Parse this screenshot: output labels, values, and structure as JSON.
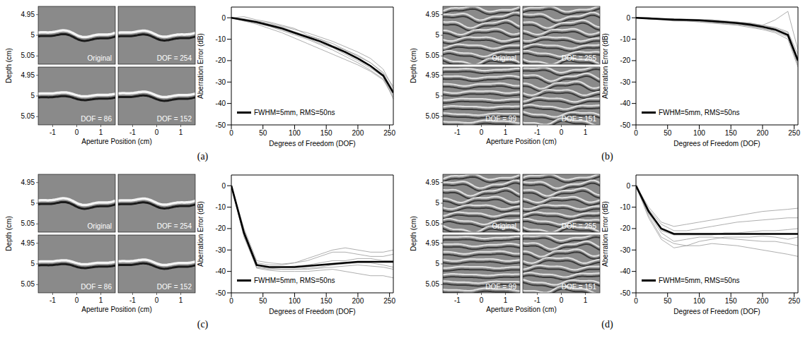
{
  "chart_data": [
    {
      "type": "line",
      "x_label": "Degrees of Freedom (DOF)",
      "y_label": "Aberration Error (dB)",
      "xlim": [
        0,
        256
      ],
      "xticks": [
        0,
        50,
        100,
        150,
        200,
        250
      ],
      "ylim": [
        -50,
        5
      ],
      "yticks": [
        0,
        -10,
        -20,
        -30,
        -40,
        -50
      ],
      "grid": false,
      "legend": "lower left",
      "x": [
        0,
        20,
        40,
        60,
        80,
        100,
        120,
        140,
        160,
        180,
        200,
        220,
        240,
        256
      ],
      "series": [
        {
          "color": "#999999",
          "line_style": "thin",
          "values": [
            0,
            -0.5,
            -1.5,
            -2.5,
            -4,
            -5.5,
            -7,
            -9,
            -11,
            -13.5,
            -16,
            -19,
            -24,
            -33
          ]
        },
        {
          "color": "#999999",
          "line_style": "thin",
          "values": [
            0,
            -1.5,
            -3,
            -5,
            -7,
            -9.5,
            -12,
            -14.5,
            -17,
            -19.5,
            -22,
            -25,
            -29,
            -37
          ]
        },
        {
          "color": "#999999",
          "line_style": "thin",
          "values": [
            0,
            0.5,
            -1,
            -2,
            -3.5,
            -5,
            -8,
            -10,
            -12,
            -15,
            -18,
            -21,
            -26,
            -34
          ]
        },
        {
          "color": "#999999",
          "line_style": "thin",
          "values": [
            0,
            -1,
            -2.5,
            -4,
            -6,
            -8,
            -10,
            -12.5,
            -15,
            -18,
            -21,
            -24.5,
            -28.5,
            -36
          ]
        },
        {
          "color": "#999999",
          "line_style": "thin",
          "values": [
            0,
            -0.5,
            -2,
            -3,
            -4.5,
            -6.5,
            -8.5,
            -10,
            -13,
            -15,
            -17.5,
            -21,
            -25.5,
            -32
          ]
        },
        {
          "color": "#999999",
          "line_style": "thin",
          "values": [
            0,
            -1.5,
            -2.5,
            -4,
            -5.5,
            -7.5,
            -9.5,
            -12,
            -14,
            -17,
            -20,
            -23.5,
            -27.5,
            -38
          ]
        },
        {
          "name": "FWHM=5mm, RMS=50ns",
          "color": "#000000",
          "line_style": "thick",
          "values": [
            0,
            -1,
            -2,
            -3.5,
            -5,
            -7,
            -9,
            -11,
            -13.5,
            -16,
            -19,
            -22.5,
            -27,
            -35
          ]
        }
      ]
    },
    {
      "type": "line",
      "x_label": "Degrees of Freedom (DOF)",
      "y_label": "Aberration Error (dB)",
      "xlim": [
        0,
        256
      ],
      "xticks": [
        0,
        50,
        100,
        150,
        200,
        250
      ],
      "ylim": [
        -50,
        5
      ],
      "yticks": [
        0,
        -10,
        -20,
        -30,
        -40,
        -50
      ],
      "grid": false,
      "legend": "lower left",
      "x": [
        0,
        20,
        40,
        60,
        80,
        100,
        120,
        140,
        160,
        180,
        200,
        220,
        240,
        256
      ],
      "series": [
        {
          "color": "#999999",
          "line_style": "thin",
          "values": [
            0,
            0,
            -0.3,
            -0.5,
            -0.6,
            -0.8,
            -1,
            -1.5,
            -2,
            -2.5,
            -3.5,
            -4.5,
            -6.5,
            -17
          ]
        },
        {
          "color": "#999999",
          "line_style": "thin",
          "values": [
            0,
            -0.5,
            -1,
            -1.5,
            -1.5,
            -2,
            -2.5,
            -3,
            -3.5,
            -4.5,
            -5.5,
            -7,
            -10,
            -23
          ]
        },
        {
          "color": "#999999",
          "line_style": "thin",
          "values": [
            0,
            -0.2,
            -0.5,
            -0.7,
            -0.8,
            -1,
            -1,
            -1.5,
            -2,
            -2.5,
            -3.5,
            -5,
            -7,
            -19
          ]
        },
        {
          "color": "#999999",
          "line_style": "thin",
          "values": [
            0,
            -0.5,
            -0.8,
            -1.2,
            -1.5,
            -1.8,
            -2.2,
            -2.8,
            -3.2,
            -4,
            -5,
            -6.5,
            -9,
            -22
          ]
        },
        {
          "color": "#999999",
          "line_style": "thin",
          "values": [
            0,
            0,
            -0.4,
            -0.6,
            -0.8,
            -1,
            -1.4,
            -1.8,
            -2.2,
            -2.8,
            -3.5,
            -1,
            3,
            -15
          ]
        },
        {
          "color": "#999999",
          "line_style": "thin",
          "values": [
            0,
            -0.3,
            -0.7,
            -1,
            -1.2,
            -1.5,
            -2,
            -2.5,
            -3,
            -3.8,
            -5,
            -6,
            -8.5,
            -21
          ]
        },
        {
          "name": "FWHM=5mm, RMS=50ns",
          "color": "#000000",
          "line_style": "thick",
          "values": [
            0,
            -0.3,
            -0.6,
            -0.9,
            -1,
            -1.2,
            -1.6,
            -2,
            -2.5,
            -3.2,
            -4.2,
            -5.5,
            -8,
            -20
          ]
        }
      ]
    },
    {
      "type": "line",
      "x_label": "Degrees of Freedom (DOF)",
      "y_label": "Aberration Error (dB)",
      "xlim": [
        0,
        256
      ],
      "xticks": [
        0,
        50,
        100,
        150,
        200,
        250
      ],
      "ylim": [
        -50,
        5
      ],
      "yticks": [
        0,
        -10,
        -20,
        -30,
        -40,
        -50
      ],
      "grid": false,
      "legend": "lower left",
      "x": [
        0,
        20,
        40,
        60,
        80,
        100,
        120,
        140,
        160,
        180,
        200,
        220,
        240,
        256
      ],
      "series": [
        {
          "color": "#999999",
          "line_style": "thin",
          "values": [
            0,
            -20,
            -35,
            -36,
            -36.5,
            -36,
            -35,
            -33,
            -31,
            -31,
            -32,
            -33,
            -33,
            -32
          ]
        },
        {
          "color": "#999999",
          "line_style": "thin",
          "values": [
            0,
            -24,
            -38,
            -39,
            -39,
            -39,
            -38.5,
            -38,
            -37,
            -36.5,
            -36,
            -36,
            -37,
            -38
          ]
        },
        {
          "color": "#999999",
          "line_style": "thin",
          "values": [
            0,
            -21,
            -36,
            -37,
            -37,
            -36,
            -34,
            -32,
            -30,
            -29,
            -30,
            -31,
            -31,
            -30
          ]
        },
        {
          "color": "#999999",
          "line_style": "thin",
          "values": [
            0,
            -23,
            -38.5,
            -39.5,
            -40,
            -40,
            -40,
            -39.5,
            -39,
            -40,
            -41,
            -42,
            -42,
            -43
          ]
        },
        {
          "color": "#999999",
          "line_style": "thin",
          "values": [
            0,
            -22,
            -37,
            -38,
            -38,
            -37.5,
            -37,
            -36,
            -35,
            -35,
            -34,
            -34,
            -35,
            -35
          ]
        },
        {
          "color": "#999999",
          "line_style": "thin",
          "values": [
            0,
            -23,
            -38,
            -38.5,
            -39,
            -39,
            -39,
            -38.5,
            -38,
            -37.5,
            -37,
            -37.5,
            -38,
            -39
          ]
        },
        {
          "name": "FWHM=5mm, RMS=50ns",
          "color": "#000000",
          "line_style": "thick",
          "values": [
            0,
            -22,
            -37,
            -38,
            -38,
            -38,
            -37.5,
            -37,
            -36.5,
            -36,
            -35.5,
            -35.5,
            -35.5,
            -35.5
          ]
        }
      ]
    },
    {
      "type": "line",
      "x_label": "Degrees of Freedom (DOF)",
      "y_label": "Aberration Error (dB)",
      "xlim": [
        0,
        256
      ],
      "xticks": [
        0,
        50,
        100,
        150,
        200,
        250
      ],
      "ylim": [
        -50,
        5
      ],
      "yticks": [
        0,
        -10,
        -20,
        -30,
        -40,
        -50
      ],
      "grid": false,
      "legend": "lower left",
      "x": [
        0,
        20,
        40,
        60,
        80,
        100,
        120,
        140,
        160,
        180,
        200,
        220,
        240,
        256
      ],
      "series": [
        {
          "color": "#999999",
          "line_style": "thin",
          "values": [
            0,
            -10,
            -17,
            -19,
            -18,
            -17,
            -16,
            -15,
            -14,
            -13,
            -12,
            -11.5,
            -11,
            -10.5
          ]
        },
        {
          "color": "#999999",
          "line_style": "thin",
          "values": [
            0,
            -14,
            -24,
            -27,
            -28,
            -28,
            -27,
            -27.5,
            -28,
            -29,
            -30,
            -31,
            -32,
            -33
          ]
        },
        {
          "color": "#999999",
          "line_style": "thin",
          "values": [
            0,
            -11,
            -18,
            -21,
            -21,
            -20,
            -19,
            -18,
            -17,
            -16.5,
            -16,
            -15.5,
            -15,
            -15
          ]
        },
        {
          "color": "#999999",
          "line_style": "thin",
          "values": [
            0,
            -13,
            -22,
            -26,
            -25,
            -24,
            -24,
            -24.5,
            -25,
            -25.5,
            -26,
            -26,
            -27,
            -28
          ]
        },
        {
          "color": "#999999",
          "line_style": "thin",
          "values": [
            0,
            -12,
            -21,
            -23,
            -23,
            -23,
            -23,
            -22,
            -22,
            -21.5,
            -21,
            -21,
            -20.5,
            -20
          ]
        },
        {
          "color": "#999999",
          "line_style": "thin",
          "values": [
            0,
            -15,
            -25,
            -29,
            -28,
            -26,
            -25,
            -24,
            -24,
            -24,
            -23.5,
            -24,
            -25,
            -24
          ]
        },
        {
          "name": "FWHM=5mm, RMS=50ns",
          "color": "#000000",
          "line_style": "thick",
          "values": [
            0,
            -12,
            -20,
            -22.5,
            -22.5,
            -22.5,
            -22.5,
            -22.5,
            -22.5,
            -22.5,
            -22.5,
            -22.5,
            -22.5,
            -22.5
          ]
        }
      ]
    }
  ],
  "image_grids": [
    {
      "label": "(a)",
      "x_label": "Aperture Position (cm)",
      "y_label": "Depth (cm)",
      "xlim": [
        -1.6,
        1.6
      ],
      "ylim": [
        4.93,
        5.07
      ],
      "xticks": [
        -1,
        0,
        1
      ],
      "yticks": [
        4.95,
        5,
        5.05
      ],
      "tiles": [
        "Original",
        "DOF = 254",
        "DOF = 86",
        "DOF = 152"
      ]
    },
    {
      "label": "(b)",
      "x_label": "Aperture Position (cm)",
      "y_label": "Depth (cm)",
      "xlim": [
        -1.6,
        1.6
      ],
      "ylim": [
        4.93,
        5.07
      ],
      "xticks": [
        -1,
        0,
        1
      ],
      "yticks": [
        4.95,
        5,
        5.05
      ],
      "tiles": [
        "Original",
        "DOF = 255",
        "DOF = 99",
        "DOF = 151"
      ]
    },
    {
      "label": "(c)",
      "x_label": "Aperture Position (cm)",
      "y_label": "Depth (cm)",
      "xlim": [
        -1.6,
        1.6
      ],
      "ylim": [
        4.93,
        5.07
      ],
      "xticks": [
        -1,
        0,
        1
      ],
      "yticks": [
        4.95,
        5,
        5.05
      ],
      "tiles": [
        "Original",
        "DOF = 254",
        "DOF = 86",
        "DOF = 152"
      ]
    },
    {
      "label": "(d)",
      "x_label": "Aperture Position (cm)",
      "y_label": "Depth (cm)",
      "xlim": [
        -1.6,
        1.6
      ],
      "ylim": [
        4.93,
        5.07
      ],
      "xticks": [
        -1,
        0,
        1
      ],
      "yticks": [
        4.95,
        5,
        5.05
      ],
      "tiles": [
        "Original",
        "DOF = 255",
        "DOF = 99",
        "DOF = 151"
      ]
    }
  ]
}
